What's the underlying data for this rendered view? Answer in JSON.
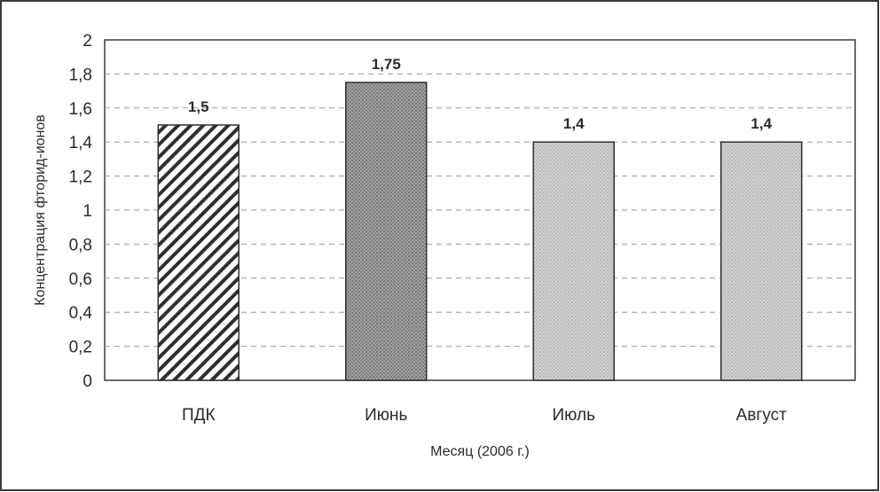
{
  "chart_data": {
    "type": "bar",
    "categories": [
      "ПДК",
      "Июнь",
      "Июль",
      "Август"
    ],
    "values": [
      1.5,
      1.75,
      1.4,
      1.4
    ],
    "data_labels": [
      "1,5",
      "1,75",
      "1,4",
      "1,4"
    ],
    "bar_styles": [
      "diagonal-hatch",
      "dark-dots",
      "light-dots",
      "light-dots"
    ],
    "xlabel": "Месяц (2006 г.)",
    "ylabel": "Концентрация фторид-ионов",
    "ylim": [
      0,
      2
    ],
    "yticks": [
      0,
      0.2,
      0.4,
      0.6,
      0.8,
      1,
      1.2,
      1.4,
      1.6,
      1.8,
      2
    ],
    "ytick_labels": [
      "0",
      "0,2",
      "0,4",
      "0,6",
      "0,8",
      "1",
      "1,2",
      "1,4",
      "1,6",
      "1,8",
      "2"
    ],
    "grid": "dashed horizontal",
    "legend": "none",
    "colors": {
      "frame": "#3a3a3a",
      "grid": "#9a9a9a",
      "hatch": "#2e2e2e",
      "dark_fill": "#8f8f8f",
      "light_fill": "#c4c4c4"
    }
  }
}
